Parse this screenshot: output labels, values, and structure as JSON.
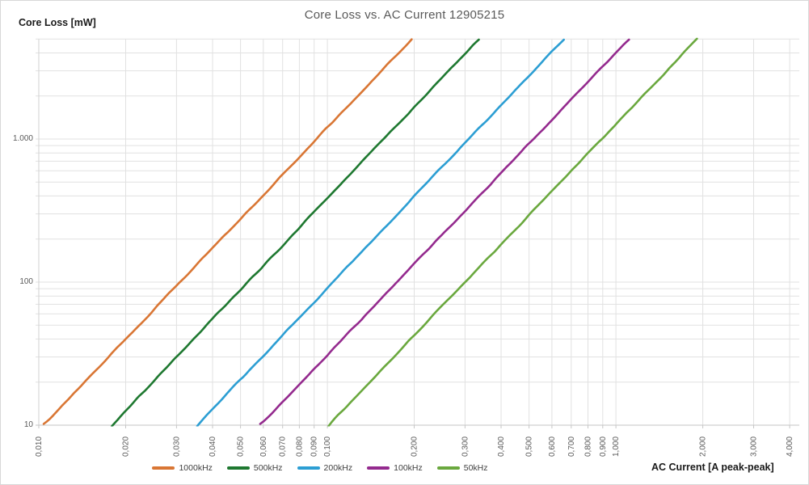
{
  "title": "Core Loss vs. AC Current 12905215",
  "y_axis_title": "Core Loss [mW]",
  "x_axis_title": "AC Current [A peak-peak]",
  "colors": {
    "title_text": "#595959",
    "tick_text": "#595959",
    "axis_title_text": "#1a1a1a",
    "gridline": "#e1e1e1",
    "axis_line": "#c6c6c6",
    "plot_border": "#d2d2d2",
    "background": "#ffffff"
  },
  "chart_data": {
    "type": "line",
    "title": "Core Loss vs. AC Current 12905215",
    "xlabel": "AC Current [A peak-peak]",
    "ylabel": "Core Loss [mW]",
    "x_scale": "log",
    "y_scale": "log",
    "xlim": [
      0.01,
      4.32
    ],
    "ylim": [
      10,
      5000
    ],
    "grid": true,
    "legend_position": "bottom-center",
    "line_style": "straight power-law lines (slope ~2.12 in log-log) with slight measurement jitter",
    "x_ticks": [
      {
        "value": 0.01,
        "label": "0,010"
      },
      {
        "value": 0.02,
        "label": "0,020"
      },
      {
        "value": 0.03,
        "label": "0,030"
      },
      {
        "value": 0.04,
        "label": "0,040"
      },
      {
        "value": 0.05,
        "label": "0,050"
      },
      {
        "value": 0.06,
        "label": "0,060"
      },
      {
        "value": 0.07,
        "label": "0,070"
      },
      {
        "value": 0.08,
        "label": "0,080"
      },
      {
        "value": 0.09,
        "label": "0,090"
      },
      {
        "value": 0.1,
        "label": "0,100"
      },
      {
        "value": 0.2,
        "label": "0,200"
      },
      {
        "value": 0.3,
        "label": "0,300"
      },
      {
        "value": 0.4,
        "label": "0,400"
      },
      {
        "value": 0.5,
        "label": "0,500"
      },
      {
        "value": 0.6,
        "label": "0,600"
      },
      {
        "value": 0.7,
        "label": "0,700"
      },
      {
        "value": 0.8,
        "label": "0,800"
      },
      {
        "value": 0.9,
        "label": "0,900"
      },
      {
        "value": 1.0,
        "label": "1,000"
      },
      {
        "value": 2.0,
        "label": "2,000"
      },
      {
        "value": 3.0,
        "label": "3,000"
      },
      {
        "value": 4.0,
        "label": "4,000"
      }
    ],
    "y_ticks": [
      {
        "value": 10,
        "label": "10"
      },
      {
        "value": 100,
        "label": "100"
      },
      {
        "value": 1000,
        "label": "1.000"
      }
    ],
    "y_minor_grid": [
      20,
      30,
      40,
      50,
      60,
      70,
      80,
      90,
      200,
      300,
      400,
      500,
      600,
      700,
      800,
      900,
      2000,
      3000,
      4000,
      5000
    ],
    "series": [
      {
        "name": "1000kHz",
        "color": "#d97634",
        "points": [
          [
            0.0104,
            10
          ],
          [
            0.196,
            5000
          ]
        ]
      },
      {
        "name": "500kHz",
        "color": "#1e7830",
        "points": [
          [
            0.0179,
            10
          ],
          [
            0.335,
            5000
          ]
        ]
      },
      {
        "name": "200kHz",
        "color": "#2c9ed3",
        "points": [
          [
            0.0354,
            10
          ],
          [
            0.66,
            5000
          ]
        ]
      },
      {
        "name": "100kHz",
        "color": "#942a8e",
        "points": [
          [
            0.0585,
            10
          ],
          [
            1.11,
            5000
          ]
        ]
      },
      {
        "name": "50kHz",
        "color": "#6aa83e",
        "points": [
          [
            0.101,
            10
          ],
          [
            1.91,
            5000
          ]
        ]
      }
    ]
  }
}
